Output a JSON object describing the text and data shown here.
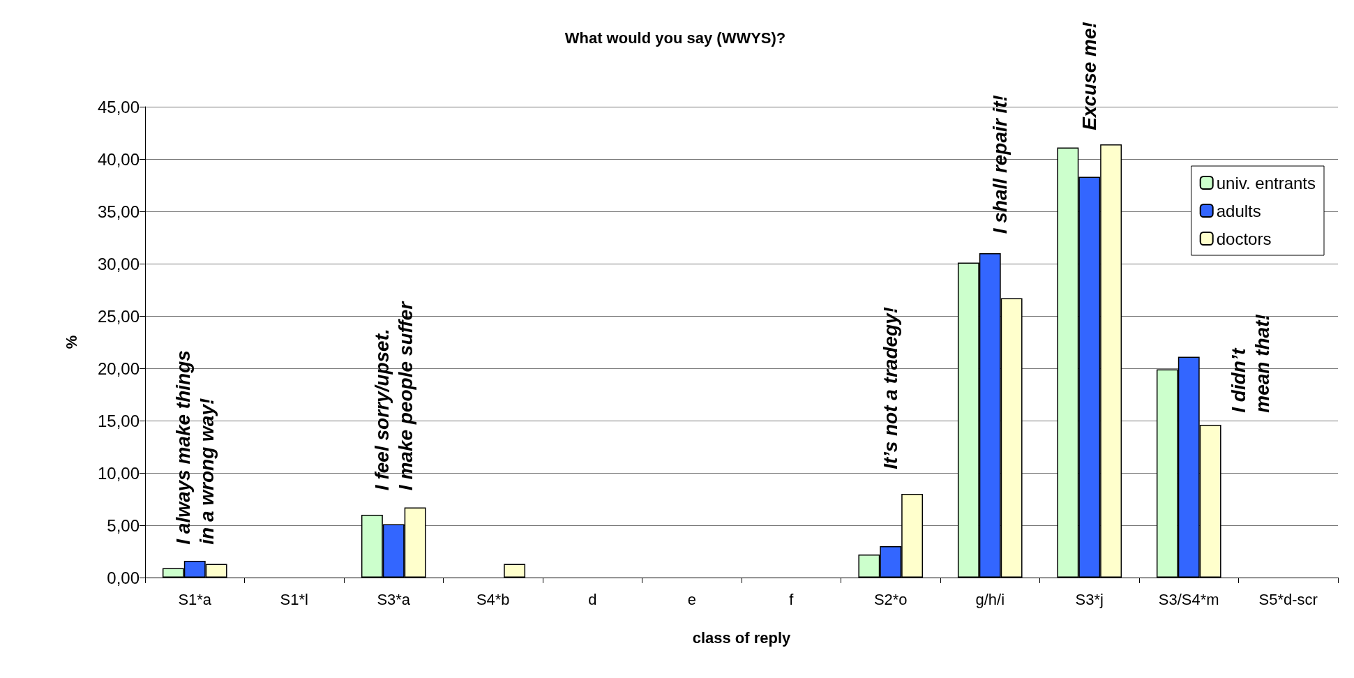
{
  "chart_data": {
    "type": "bar",
    "title": "What would you say (WWYS)?",
    "xlabel": "class of reply",
    "ylabel": "%",
    "categories": [
      "S1*a",
      "S1*l",
      "S3*a",
      "S4*b",
      "d",
      "e",
      "f",
      "S2*o",
      "g/h/i",
      "S3*j",
      "S3/S4*m",
      "S5*d-scr"
    ],
    "series": [
      {
        "name": "univ. entrants",
        "color": "#ccffcc",
        "values": [
          0.9,
          null,
          6.0,
          null,
          null,
          null,
          null,
          2.2,
          30.1,
          41.1,
          19.9,
          null
        ]
      },
      {
        "name": "adults",
        "color": "#3366ff",
        "values": [
          1.6,
          null,
          5.1,
          null,
          null,
          null,
          null,
          3.0,
          31.0,
          38.3,
          21.1,
          null
        ]
      },
      {
        "name": "doctors",
        "color": "#ffffcc",
        "values": [
          1.3,
          null,
          6.7,
          1.3,
          null,
          null,
          null,
          8.0,
          26.7,
          41.4,
          14.6,
          null
        ]
      }
    ],
    "ylim": [
      0,
      45
    ],
    "yticks": [
      {
        "value": 0,
        "label": "0,00"
      },
      {
        "value": 5,
        "label": "5,00"
      },
      {
        "value": 10,
        "label": "10,00"
      },
      {
        "value": 15,
        "label": "15,00"
      },
      {
        "value": 20,
        "label": "20,00"
      },
      {
        "value": 25,
        "label": "25,00"
      },
      {
        "value": 30,
        "label": "30,00"
      },
      {
        "value": 35,
        "label": "35,00"
      },
      {
        "value": 40,
        "label": "40,00"
      },
      {
        "value": 45,
        "label": "45,00"
      }
    ],
    "grid": "y",
    "legend": "top right",
    "annotations": [
      "I always make things\nin a wrong way!",
      "I feel sorry/upset.\nI make people suffer",
      "It’s not a tradegy!",
      "I shall repair it!",
      "Excuse me!",
      "I didn’t\nmean that!"
    ]
  }
}
